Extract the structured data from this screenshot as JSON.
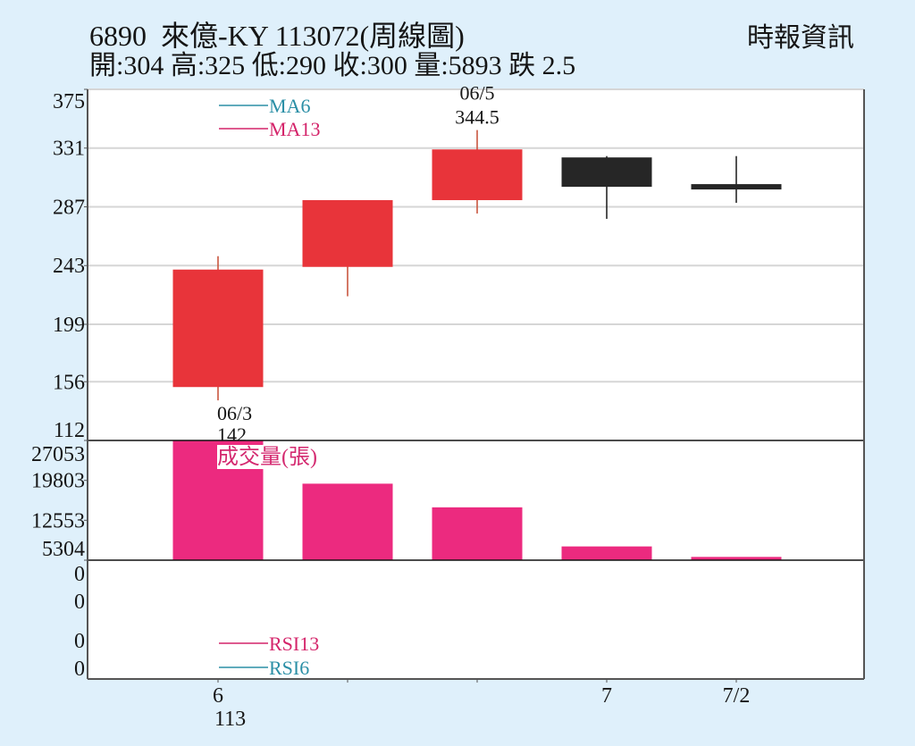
{
  "header": {
    "title": "6890  來億-KY 113072(周線圖)",
    "quote": "開:304 高:325 低:290 收:300 量:5893 跌 2.5",
    "source": "時報資訊"
  },
  "colors": {
    "background": "#dff0fb",
    "plot_bg": "#ffffff",
    "up_candle": "#e8343a",
    "up_wick": "#c9573f",
    "down_candle": "#262626",
    "volume_bar": "#ec2a7f",
    "volume_label": "#d42a70",
    "ma6": "#2b8fa6",
    "ma13": "#d4246a",
    "rsi6": "#2b8fa6",
    "rsi13": "#d4246a",
    "grid": "#d6d6d6",
    "axis": "#555555",
    "separator": "#111111",
    "text": "#151515"
  },
  "chart_data": {
    "type": "candlestick",
    "title": "6890 來億-KY 113072(周線圖)",
    "subtitle": "開:304 高:325 低:290 收:300 量:5893 跌 2.5",
    "period": "weekly",
    "candles": [
      {
        "open": 152,
        "high": 250,
        "low": 142,
        "close": 240
      },
      {
        "open": 242,
        "high": 292,
        "low": 220,
        "close": 292
      },
      {
        "open": 292,
        "high": 344.5,
        "low": 282,
        "close": 330
      },
      {
        "open": 324,
        "high": 325,
        "low": 278,
        "close": 302
      },
      {
        "open": 304,
        "high": 325,
        "low": 290,
        "close": 300
      }
    ],
    "volume": [
      27100,
      19200,
      14900,
      7800,
      5893
    ],
    "price_axis": {
      "min": 112,
      "max": 375,
      "ticks": [
        375,
        331,
        287,
        243,
        199,
        156,
        112
      ]
    },
    "volume_axis": {
      "min": 5304,
      "max": 27053,
      "ticks": [
        27053,
        19803,
        12553,
        5304
      ]
    },
    "rsi_axis": {
      "tick_labels": [
        "0",
        "0",
        "0",
        "0"
      ]
    },
    "x_ticks": [
      {
        "candle": 0,
        "label": "6",
        "sublabel": "113"
      },
      {
        "candle": 3,
        "label": "7",
        "sublabel": ""
      },
      {
        "candle": 4,
        "label": "7/2",
        "sublabel": ""
      }
    ],
    "annotations": [
      {
        "candle": 2,
        "position": "above",
        "date": "06/5",
        "value": "344.5"
      },
      {
        "candle": 0,
        "position": "below",
        "date": "06/3",
        "value": "142"
      }
    ],
    "legend_price": [
      {
        "name": "MA6",
        "color": "#2b8fa6"
      },
      {
        "name": "MA13",
        "color": "#d4246a"
      }
    ],
    "volume_label": "成交量(張)",
    "legend_rsi": [
      {
        "name": "RSI13",
        "color": "#d4246a"
      },
      {
        "name": "RSI6",
        "color": "#2b8fa6"
      }
    ],
    "grid": true
  }
}
